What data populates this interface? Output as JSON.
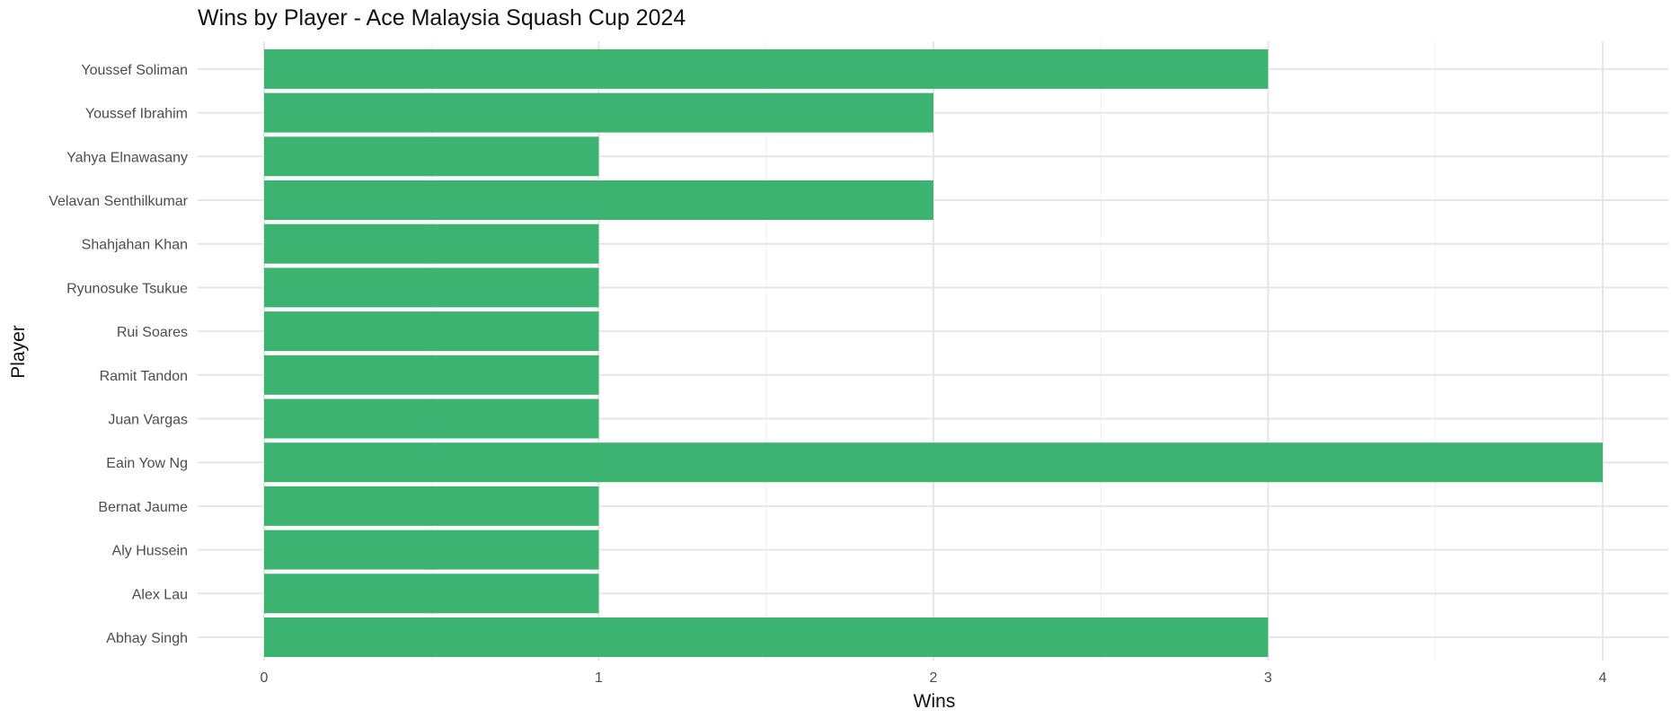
{
  "chart_data": {
    "type": "bar",
    "orientation": "horizontal",
    "title": "Wins by Player - Ace Malaysia Squash Cup 2024",
    "xlabel": "Wins",
    "ylabel": "Player",
    "categories": [
      "Abhay Singh",
      "Alex Lau",
      "Aly Hussein",
      "Bernat Jaume",
      "Eain Yow Ng",
      "Juan Vargas",
      "Ramit Tandon",
      "Rui Soares",
      "Ryunosuke Tsukue",
      "Shahjahan Khan",
      "Velavan Senthilkumar",
      "Yahya Elnawasany",
      "Youssef Ibrahim",
      "Youssef Soliman"
    ],
    "values": [
      3,
      1,
      1,
      1,
      4,
      1,
      1,
      1,
      1,
      1,
      2,
      1,
      2,
      3
    ],
    "xlim": [
      0,
      4
    ],
    "xticks": [
      0,
      1,
      2,
      3,
      4
    ],
    "grid": true,
    "bar_color": "#3CB371",
    "legend": "none"
  }
}
